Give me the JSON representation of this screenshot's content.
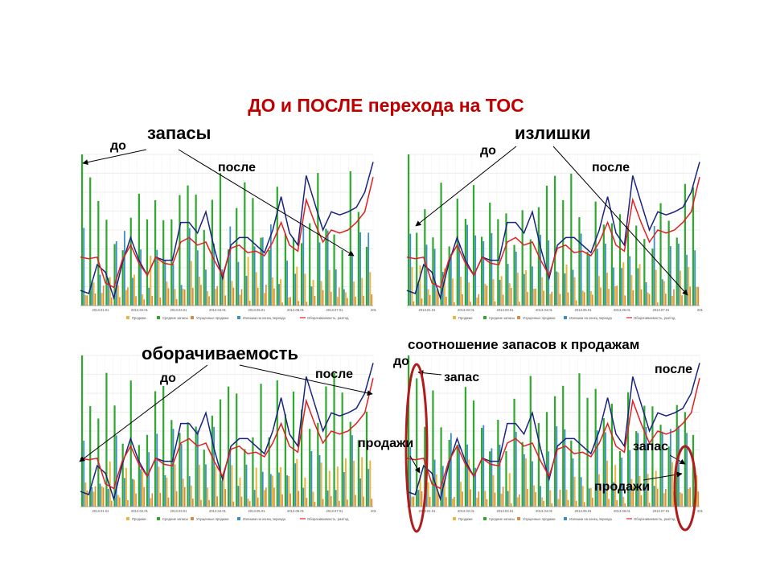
{
  "slide": {
    "title": "ДО и ПОСЛЕ перехода на ТОС"
  },
  "labels": {
    "p1_title": "запасы",
    "p1_before": "до",
    "p1_after": "после",
    "p2_title": "излишки",
    "p2_before": "до",
    "p2_after": "после",
    "p3_title": "оборачиваемость",
    "p3_before": "до",
    "p3_after": "после",
    "p4_title": "соотношение запасов к продажам",
    "p4_before": "до",
    "p4_after": "после",
    "p4_stock_left": "запас",
    "p4_sales_left": "продажи",
    "p4_stock_right": "запас",
    "p4_sales_right": "продажи"
  },
  "colors": {
    "title": "#c00000",
    "sales": "#e8b83a",
    "avg_stock": "#2ea82e",
    "lost_sales": "#d98a3a",
    "surplus": "#3a8fc4",
    "turnover": "#e02020",
    "turnover_dark": "#1a237e",
    "highlight": "#b01c1c"
  },
  "chart_data": [
    {
      "type": "bar",
      "panel": "stocks",
      "x_ticks": [
        "2013.01.01",
        "2013.02.01",
        "2013.03.01",
        "2013.04.01",
        "2013.05.01",
        "2013.06.01",
        "2013.07.01",
        "201"
      ],
      "legend": [
        "Продажи",
        "Средние запасы",
        "Упущенные продажи",
        "Излишки на конец периода",
        "Оборачиваемость, раз/год"
      ]
    },
    {
      "type": "bar",
      "panel": "surplus",
      "x_ticks": [
        "2013.01.01",
        "2013.02.01",
        "2013.03.01",
        "2013.04.01",
        "2013.05.01",
        "2013.06.01",
        "2013.07.01",
        "201"
      ],
      "legend": [
        "Продажи",
        "Средние запасы",
        "Упущенные продажи",
        "Излишки на конец периода",
        "Оборачиваемость, раз/год"
      ]
    },
    {
      "type": "bar",
      "panel": "turnover",
      "x_ticks": [
        "2013.01.01",
        "2013.02.01",
        "2013.03.01",
        "2013.04.01",
        "2013.05.01",
        "2013.06.01",
        "2013.07.01",
        "201"
      ],
      "legend": [
        "Продажи",
        "Средние запасы",
        "Упущенные продажи",
        "Излишки на конец периода",
        "Оборачиваемость, раз/год"
      ]
    },
    {
      "type": "bar",
      "panel": "stock_to_sales",
      "x_ticks": [
        "2013.01.01",
        "2013.02.01",
        "2013.03.01",
        "2013.04.01",
        "2013.05.01",
        "2013.06.01",
        "2013.07.01",
        "201"
      ],
      "legend": [
        "Продажи",
        "Средние запасы",
        "Упущенные продажи",
        "Излишки на конец периода",
        "Оборачиваемость, раз/год"
      ]
    }
  ]
}
